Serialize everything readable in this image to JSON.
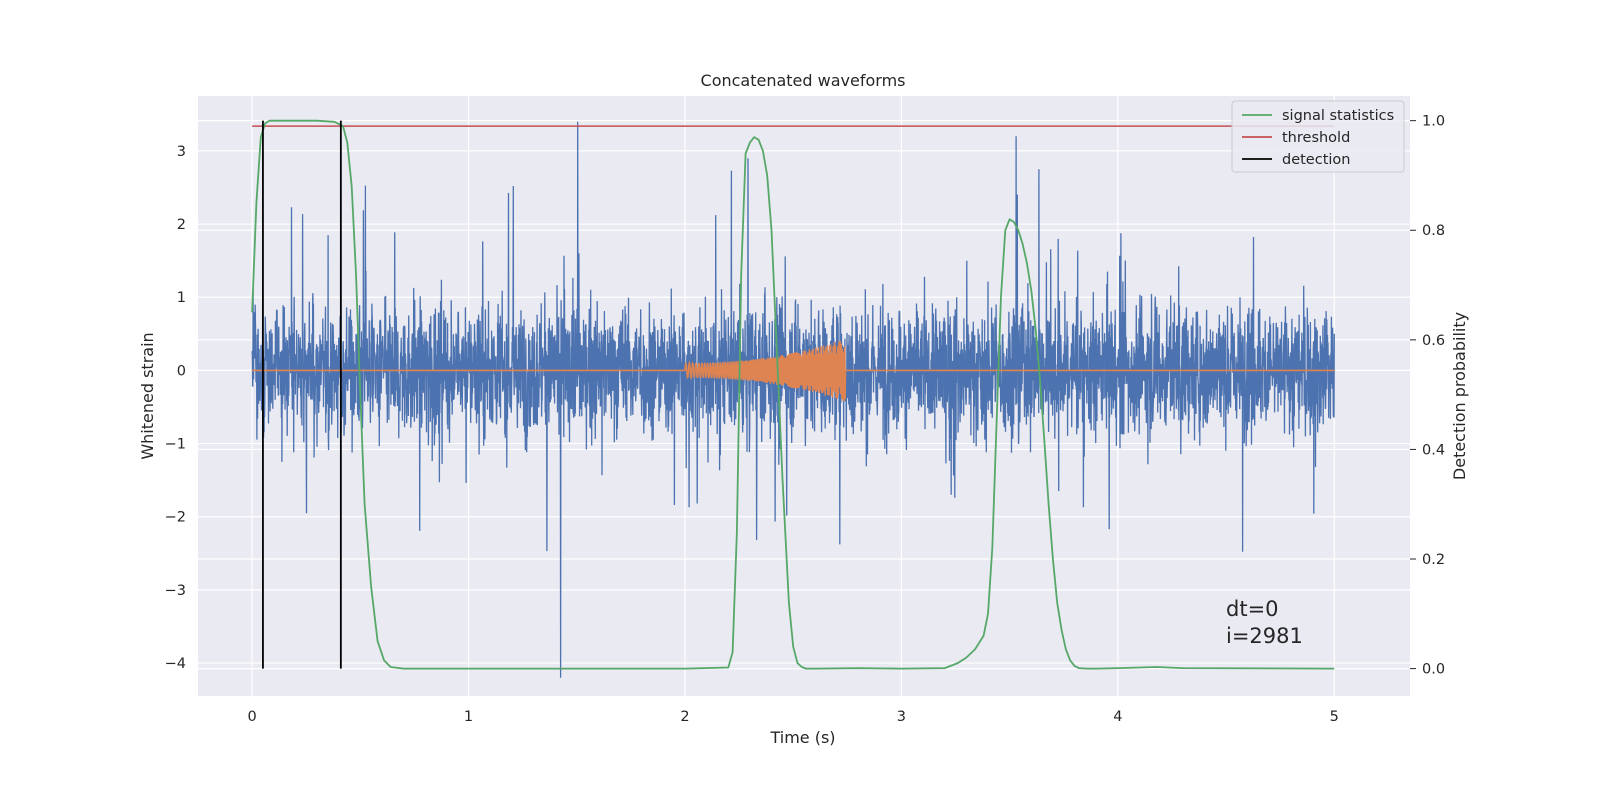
{
  "chart_data": {
    "type": "line",
    "title": "Concatenated waveforms",
    "xlabel": "Time (s)",
    "ylabel": "Whitened strain",
    "y2label": "Detection probability",
    "xlim": [
      -0.25,
      5.35
    ],
    "ylim": [
      -4.45,
      3.75
    ],
    "y2lim": [
      -0.05,
      1.045
    ],
    "xticks": [
      0,
      1,
      2,
      3,
      4,
      5
    ],
    "yticks": [
      3,
      2,
      1,
      0,
      -1,
      -2,
      -3,
      -4
    ],
    "y2ticks": [
      1.0,
      0.8,
      0.6,
      0.4,
      0.2,
      0.0
    ],
    "xtick_labels": [
      "0",
      "1",
      "2",
      "3",
      "4",
      "5"
    ],
    "ytick_labels": [
      "3",
      "2",
      "1",
      "0",
      "−1",
      "−2",
      "−3",
      "−4"
    ],
    "y2tick_labels": [
      "1.0",
      "0.8",
      "0.6",
      "0.4",
      "0.2",
      "0.0"
    ],
    "grid": true,
    "legend_position": "top-right",
    "colors": {
      "strain": "#4c72b0",
      "injection": "#dd8452",
      "signal_statistics": "#55a868",
      "threshold": "#c44e52",
      "detection": "#000000",
      "axes_bg": "#eaeaf2",
      "grid": "#ffffff"
    },
    "strain": {
      "t_start": 0.0,
      "t_end": 5.0,
      "typical_range": [
        -1.6,
        1.8
      ],
      "peak_max": 3.4,
      "peak_min": -4.2
    },
    "injection": {
      "t_start": 2.0,
      "t_end": 2.74,
      "amp_start": 0.1,
      "amp_end": 0.43
    },
    "series": [
      {
        "name": "signal statistics",
        "axis": "right",
        "x": [
          0.0,
          0.02,
          0.04,
          0.06,
          0.08,
          0.12,
          0.2,
          0.3,
          0.38,
          0.42,
          0.44,
          0.46,
          0.48,
          0.5,
          0.52,
          0.55,
          0.58,
          0.61,
          0.64,
          0.7,
          1.0,
          1.5,
          2.0,
          2.2,
          2.22,
          2.24,
          2.26,
          2.28,
          2.3,
          2.32,
          2.34,
          2.36,
          2.38,
          2.4,
          2.42,
          2.45,
          2.48,
          2.5,
          2.52,
          2.54,
          2.56,
          2.6,
          2.8,
          3.0,
          3.2,
          3.26,
          3.3,
          3.34,
          3.38,
          3.4,
          3.42,
          3.44,
          3.46,
          3.48,
          3.5,
          3.52,
          3.54,
          3.56,
          3.58,
          3.6,
          3.62,
          3.64,
          3.66,
          3.68,
          3.7,
          3.72,
          3.74,
          3.76,
          3.78,
          3.8,
          3.82,
          3.86,
          3.9,
          4.0,
          4.18,
          4.3,
          5.0
        ],
        "y": [
          0.65,
          0.85,
          0.97,
          0.995,
          1.0,
          1.0,
          1.0,
          1.0,
          0.998,
          0.99,
          0.96,
          0.88,
          0.72,
          0.5,
          0.3,
          0.15,
          0.05,
          0.015,
          0.003,
          0.0,
          0.0,
          0.0,
          0.0,
          0.002,
          0.03,
          0.25,
          0.72,
          0.94,
          0.96,
          0.97,
          0.965,
          0.945,
          0.9,
          0.8,
          0.62,
          0.35,
          0.12,
          0.04,
          0.01,
          0.003,
          0.0,
          0.0,
          0.001,
          0.0,
          0.001,
          0.01,
          0.02,
          0.035,
          0.06,
          0.1,
          0.22,
          0.45,
          0.68,
          0.8,
          0.82,
          0.815,
          0.8,
          0.775,
          0.74,
          0.69,
          0.62,
          0.53,
          0.42,
          0.3,
          0.2,
          0.12,
          0.07,
          0.035,
          0.015,
          0.005,
          0.001,
          0.0,
          0.0,
          0.001,
          0.003,
          0.001,
          0.0
        ]
      },
      {
        "name": "threshold",
        "axis": "right",
        "x": [
          0.0,
          5.0
        ],
        "y": [
          0.99,
          0.99
        ]
      },
      {
        "name": "detection",
        "axis": "right",
        "vlines": [
          0.05,
          0.41
        ],
        "y_range": [
          0.0,
          1.0
        ]
      }
    ],
    "annotations": [
      "dt=0",
      "i=2981"
    ]
  }
}
